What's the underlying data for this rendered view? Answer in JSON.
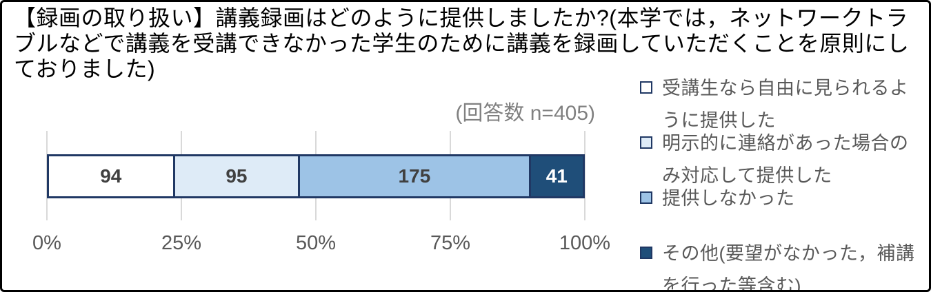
{
  "chart": {
    "title": "【録画の取り扱い】講義録画はどのように提供しましたか?(本学では，ネットワークトラブルなどで講義を受講できなかった学生のために講義を録画していただくことを原則にしておりました)",
    "response_count_label": "(回答数 n=405)"
  },
  "chart_data": {
    "type": "bar",
    "orientation": "horizontal-stacked",
    "title": "【録画の取り扱い】講義録画はどのように提供しましたか?(本学では，ネットワークトラブルなどで講義を受講できなかった学生のために講義を録画していただくことを原則にしておりました)",
    "subtitle": "(回答数 n=405)",
    "n_total": 405,
    "series": [
      {
        "name": "受講生なら自由に見られるように提供した",
        "value": 94,
        "fill": "#FFFFFF",
        "label_color": "#404040"
      },
      {
        "name": "明示的に連絡があった場合のみ対応して提供した",
        "value": 95,
        "fill": "#DEEBF7",
        "label_color": "#404040"
      },
      {
        "name": "提供しなかった",
        "value": 175,
        "fill": "#9DC3E6",
        "label_color": "#404040"
      },
      {
        "name": "その他(要望がなかった，補講を行った等含む)",
        "value": 41,
        "fill": "#1F4E79",
        "label_color": "#FFFFFF"
      }
    ],
    "xlim": [
      0,
      100
    ],
    "x_tick_labels": [
      "0%",
      "25%",
      "50%",
      "75%",
      "100%"
    ],
    "x_tick_positions": [
      0,
      25,
      50,
      75,
      100
    ],
    "grid": true,
    "legend_position": "right",
    "colors": {
      "segment_border": "#203864",
      "gridline": "#D9D9D9",
      "axis_text": "#595959",
      "legend_text": "#595959",
      "subtitle_text": "#808080",
      "title_text": "#000000",
      "frame_border": "#000000",
      "background": "#FFFFFF"
    }
  }
}
